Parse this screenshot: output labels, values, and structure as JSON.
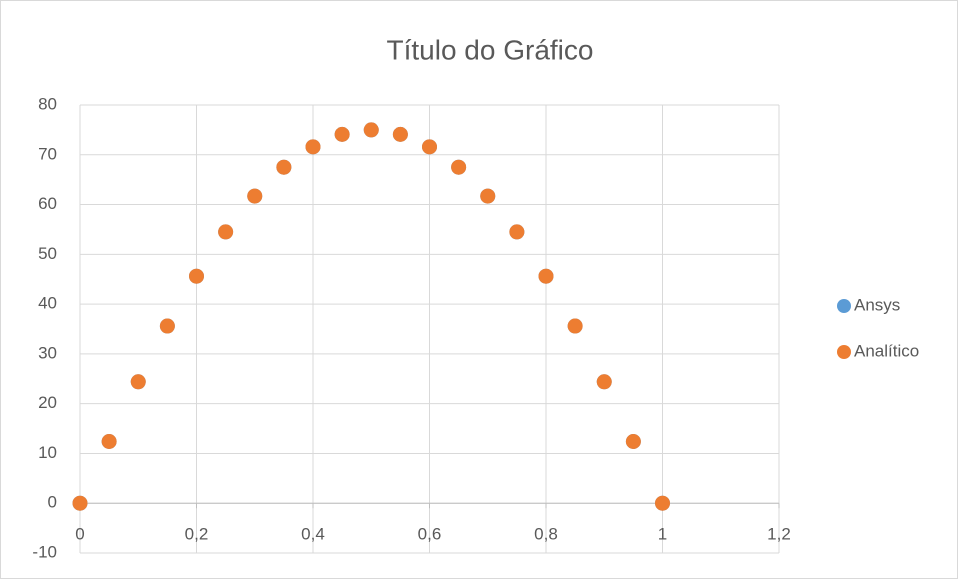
{
  "chart_data": {
    "type": "scatter",
    "title": "Título do Gráfico",
    "x": [
      0,
      0.05,
      0.1,
      0.15,
      0.2,
      0.25,
      0.3,
      0.35,
      0.4,
      0.45,
      0.5,
      0.55,
      0.6,
      0.65,
      0.7,
      0.75,
      0.8,
      0.85,
      0.9,
      0.95,
      1
    ],
    "series": [
      {
        "name": "Ansys",
        "color": "#5b9bd5",
        "values": [
          0,
          12.4,
          24.4,
          35.6,
          45.6,
          54.5,
          61.7,
          67.5,
          71.6,
          74.1,
          75,
          74.1,
          71.6,
          67.5,
          61.7,
          54.5,
          45.6,
          35.6,
          24.4,
          12.4,
          0
        ]
      },
      {
        "name": "Analítico",
        "color": "#ed7d31",
        "values": [
          0,
          12.4,
          24.4,
          35.6,
          45.6,
          54.5,
          61.7,
          67.5,
          71.6,
          74.1,
          75,
          74.1,
          71.6,
          67.5,
          61.7,
          54.5,
          45.6,
          35.6,
          24.4,
          12.4,
          0
        ]
      }
    ],
    "xlim": [
      0,
      1.2
    ],
    "xticks": [
      0,
      {
        "value": 0.2,
        "label": "0,2"
      },
      {
        "value": 0.4,
        "label": "0,4"
      },
      {
        "value": 0.6,
        "label": "0,6"
      },
      {
        "value": 0.8,
        "label": "0,8"
      },
      1,
      {
        "value": 1.2,
        "label": "1,2"
      }
    ],
    "ylim": [
      -10,
      80
    ],
    "yticks": [
      -10,
      0,
      10,
      20,
      30,
      40,
      50,
      60,
      70,
      80
    ],
    "grid": true,
    "legend": "right"
  }
}
